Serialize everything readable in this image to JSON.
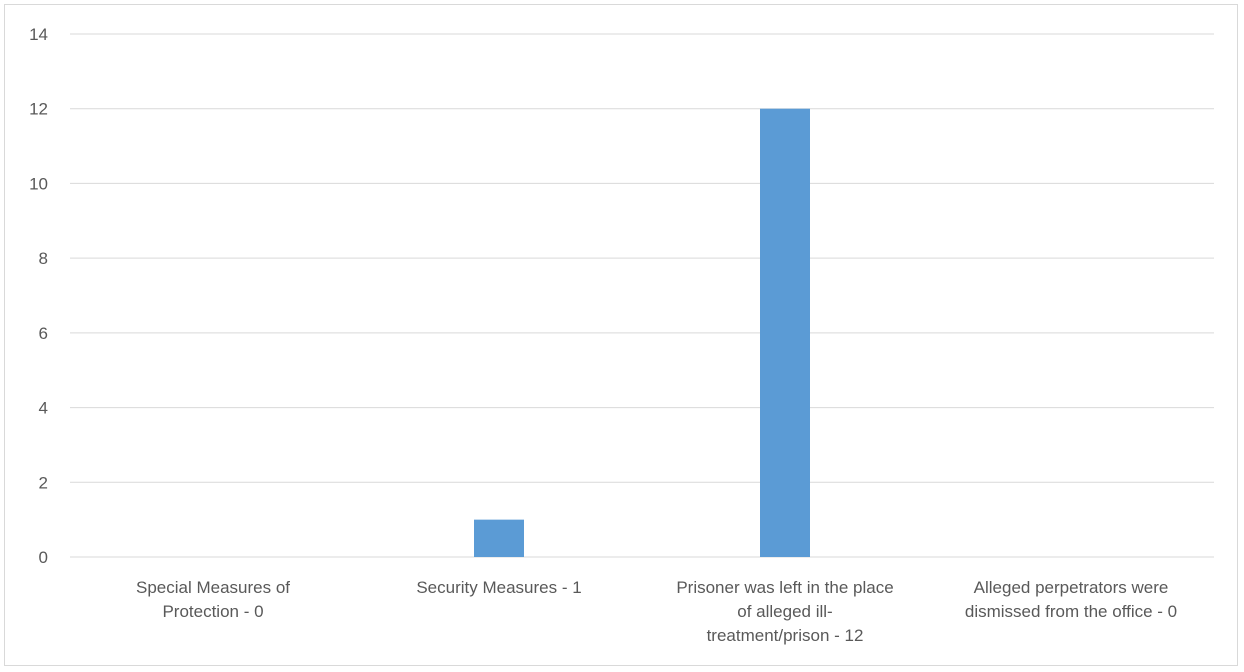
{
  "chart_data": {
    "type": "bar",
    "categories": [
      [
        "Special Measures of",
        "Protection - 0"
      ],
      [
        "Security Measures - 1"
      ],
      [
        "Prisoner was left in the place",
        "of alleged ill-",
        "treatment/prison - 12"
      ],
      [
        "Alleged perpetrators were",
        "dismissed from the office - 0"
      ]
    ],
    "values": [
      0,
      1,
      12,
      0
    ],
    "ylim": [
      0,
      14
    ],
    "yticks": [
      0,
      2,
      4,
      6,
      8,
      10,
      12,
      14
    ],
    "grid": true,
    "title": "",
    "xlabel": "",
    "ylabel": "",
    "colors": {
      "bar": "#5b9bd5",
      "grid": "#d9d9d9",
      "axis": "#d9d9d9",
      "text": "#595959"
    }
  }
}
